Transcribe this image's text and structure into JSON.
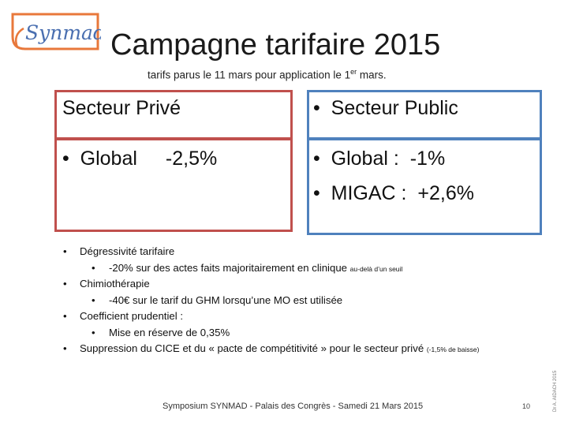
{
  "logo": {
    "text": "Synmad"
  },
  "title": "Campagne tarifaire 2015",
  "subtitle": {
    "pre": "tarifs parus le 11 mars pour application le 1",
    "sup": "er",
    "post": " mars."
  },
  "private_sector": {
    "title": "Secteur Privé",
    "bullet": "Global",
    "value": "-2,5%"
  },
  "public_sector": {
    "title": "Secteur Public",
    "items": [
      {
        "label": "Global :",
        "value": "-1%"
      },
      {
        "label": "MIGAC :",
        "value": "+2,6%"
      }
    ]
  },
  "bullets": {
    "b1": "Dégressivité tarifaire",
    "b1_sub": "-20% sur des actes faits majoritairement en clinique",
    "b1_sub_small": "au-delà d’un seuil",
    "b2": "Chimiothérapie",
    "b2_sub": "-40€ sur le tarif du GHM lorsqu’une MO est utilisée",
    "b3": "Coefficient prudentiel :",
    "b3_sub": "Mise en réserve de 0,35%",
    "b4": "Suppression du CICE et du « pacte de compétitivité » pour le secteur privé",
    "b4_small": "(-1,5% de baisse)"
  },
  "footer": "Symposium SYNMAD - Palais des Congrès - Samedi 21 Mars 2015",
  "page_number": "10",
  "vertical_credit": "Dr A. AIDACH 2015",
  "colors": {
    "red": "#c0504d",
    "blue": "#4f81bd",
    "logo_orange": "#e8783b",
    "logo_blue": "#4a6fb0"
  }
}
